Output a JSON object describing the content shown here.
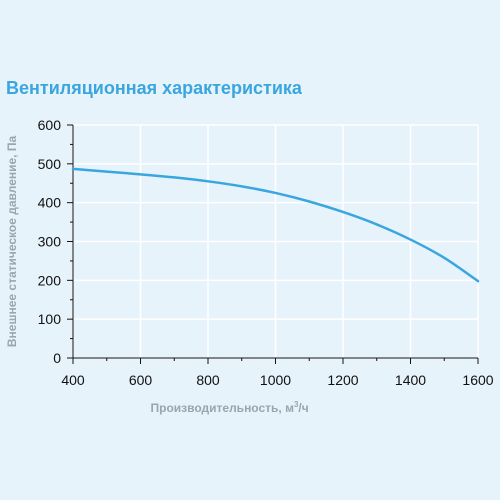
{
  "chart_data": {
    "type": "line",
    "title": "Вентиляционная характеристика",
    "xlabel": "Производительность, м³/ч",
    "xlabel_parts": {
      "before": "Производительность, м",
      "sup": "3",
      "after": "/ч"
    },
    "ylabel": "Внешнее статическое давление, Па",
    "xlim": [
      400,
      1600
    ],
    "ylim": [
      0,
      600
    ],
    "x_ticks": [
      400,
      600,
      800,
      1000,
      1200,
      1400,
      1600
    ],
    "y_ticks": [
      0,
      100,
      200,
      300,
      400,
      500,
      600
    ],
    "grid": true,
    "legend": "none",
    "series": [
      {
        "color": "#3aa6e0",
        "x": [
          400,
          500,
          600,
          700,
          800,
          900,
          1000,
          1100,
          1200,
          1300,
          1400,
          1500,
          1600
        ],
        "y": [
          487,
          480,
          473,
          465,
          455,
          442,
          425,
          403,
          376,
          344,
          305,
          258,
          198
        ]
      }
    ]
  },
  "colors": {
    "background": "#e6f3fb",
    "line": "#3aa6e0",
    "grid": "#ffffff",
    "axis": "#111111",
    "title": "#3aa6e0",
    "axis_title": "#9aa5ad"
  }
}
